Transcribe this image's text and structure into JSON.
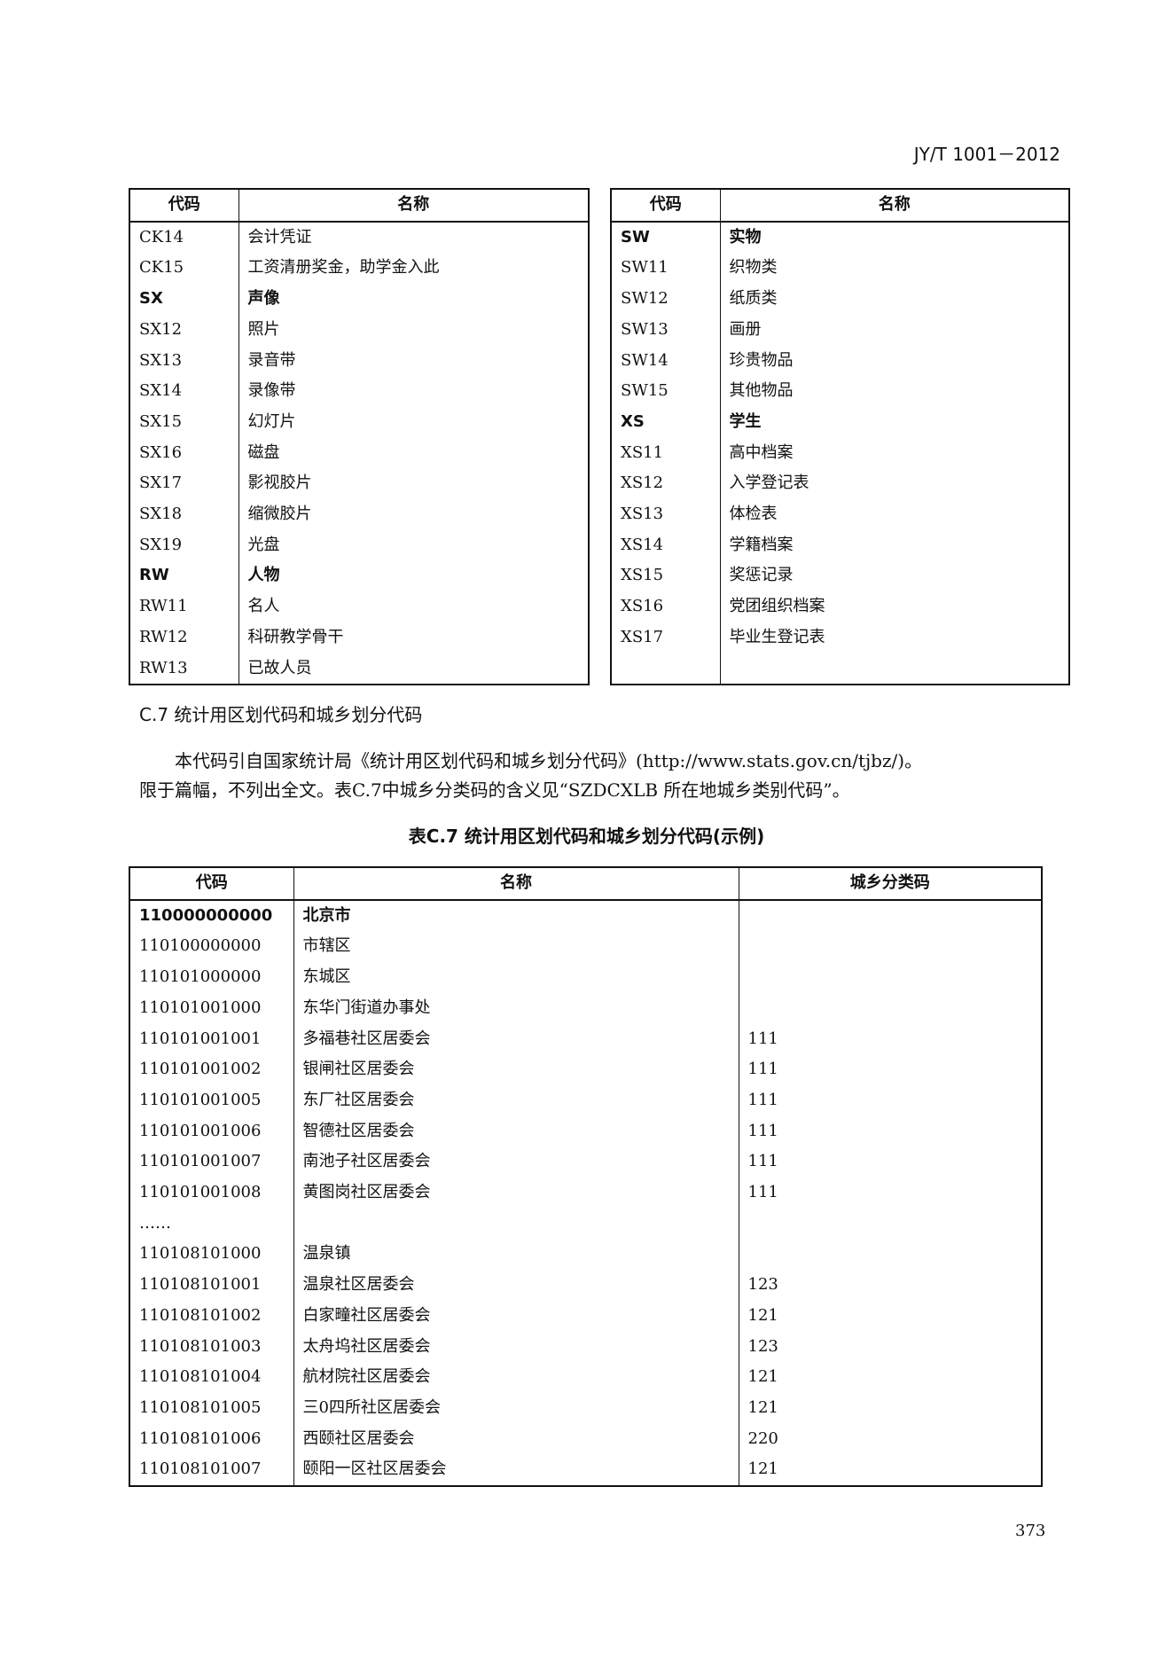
{
  "header": "JY/T 1001－2012",
  "table_left": {
    "headers": [
      "代码",
      "名称"
    ],
    "rows": [
      [
        "CK14",
        "会计凭证",
        false
      ],
      [
        "CK15",
        "工资清册奖金，助学金入此",
        false
      ],
      [
        "SX",
        "声像",
        true
      ],
      [
        "SX12",
        "照片",
        false
      ],
      [
        "SX13",
        "录音带",
        false
      ],
      [
        "SX14",
        "录像带",
        false
      ],
      [
        "SX15",
        "幻灯片",
        false
      ],
      [
        "SX16",
        "磁盘",
        false
      ],
      [
        "SX17",
        "影视胶片",
        false
      ],
      [
        "SX18",
        "缩微胶片",
        false
      ],
      [
        "SX19",
        "光盘",
        false
      ],
      [
        "RW",
        "人物",
        true
      ],
      [
        "RW11",
        "名人",
        false
      ],
      [
        "RW12",
        "科研教学骨干",
        false
      ],
      [
        "RW13",
        "已故人员",
        false
      ]
    ]
  },
  "table_right": {
    "headers": [
      "代码",
      "名称"
    ],
    "rows": [
      [
        "SW",
        "实物",
        true
      ],
      [
        "SW11",
        "织物类",
        false
      ],
      [
        "SW12",
        "纸质类",
        false
      ],
      [
        "SW13",
        "画册",
        false
      ],
      [
        "SW14",
        "珍贵物品",
        false
      ],
      [
        "SW15",
        "其他物品",
        false
      ],
      [
        "XS",
        "学生",
        true
      ],
      [
        "XS11",
        "高中档案",
        false
      ],
      [
        "XS12",
        "入学登记表",
        false
      ],
      [
        "XS13",
        "体检表",
        false
      ],
      [
        "XS14",
        "学籍档案",
        false
      ],
      [
        "XS15",
        "奖惩记录",
        false
      ],
      [
        "XS16",
        "党团组织档案",
        false
      ],
      [
        "XS17",
        "毕业生登记表",
        false
      ],
      [
        "",
        "",
        false
      ]
    ]
  },
  "section_title": "C.7  统计用区划代码和城乡划分代码",
  "paragraph_line1": "本代码引自国家统计局《统计用区划代码和城乡划分代码》(http://www.stats.gov.cn/tjbz/)。",
  "paragraph_line2": "限于篇幅，不列出全文。表C.7中城乡分类码的含义见“SZDCXLB 所在地城乡类别代码”。",
  "table_caption": "表C.7  统计用区划代码和城乡划分代码(示例)",
  "table_c7": {
    "headers": [
      "代码",
      "名称",
      "城乡分类码"
    ],
    "rows": [
      [
        "110000000000",
        "北京市",
        "",
        true
      ],
      [
        "110100000000",
        "市辖区",
        "",
        false
      ],
      [
        "110101000000",
        "东城区",
        "",
        false
      ],
      [
        "110101001000",
        "东华门街道办事处",
        "",
        false
      ],
      [
        "110101001001",
        "多福巷社区居委会",
        "111",
        false
      ],
      [
        "110101001002",
        "银闸社区居委会",
        "111",
        false
      ],
      [
        "110101001005",
        "东厂社区居委会",
        "111",
        false
      ],
      [
        "110101001006",
        "智德社区居委会",
        "111",
        false
      ],
      [
        "110101001007",
        "南池子社区居委会",
        "111",
        false
      ],
      [
        "110101001008",
        "黄图岗社区居委会",
        "111",
        false
      ],
      [
        "……",
        "",
        "",
        false
      ],
      [
        "110108101000",
        "温泉镇",
        "",
        false
      ],
      [
        "110108101001",
        "温泉社区居委会",
        "123",
        false
      ],
      [
        "110108101002",
        "白家疃社区居委会",
        "121",
        false
      ],
      [
        "110108101003",
        "太舟坞社区居委会",
        "123",
        false
      ],
      [
        "110108101004",
        "航材院社区居委会",
        "121",
        false
      ],
      [
        "110108101005",
        "三0四所社区居委会",
        "121",
        false
      ],
      [
        "110108101006",
        "西颐社区居委会",
        "220",
        false
      ],
      [
        "110108101007",
        "颐阳一区社区居委会",
        "121",
        false
      ]
    ]
  },
  "page_number": "373"
}
